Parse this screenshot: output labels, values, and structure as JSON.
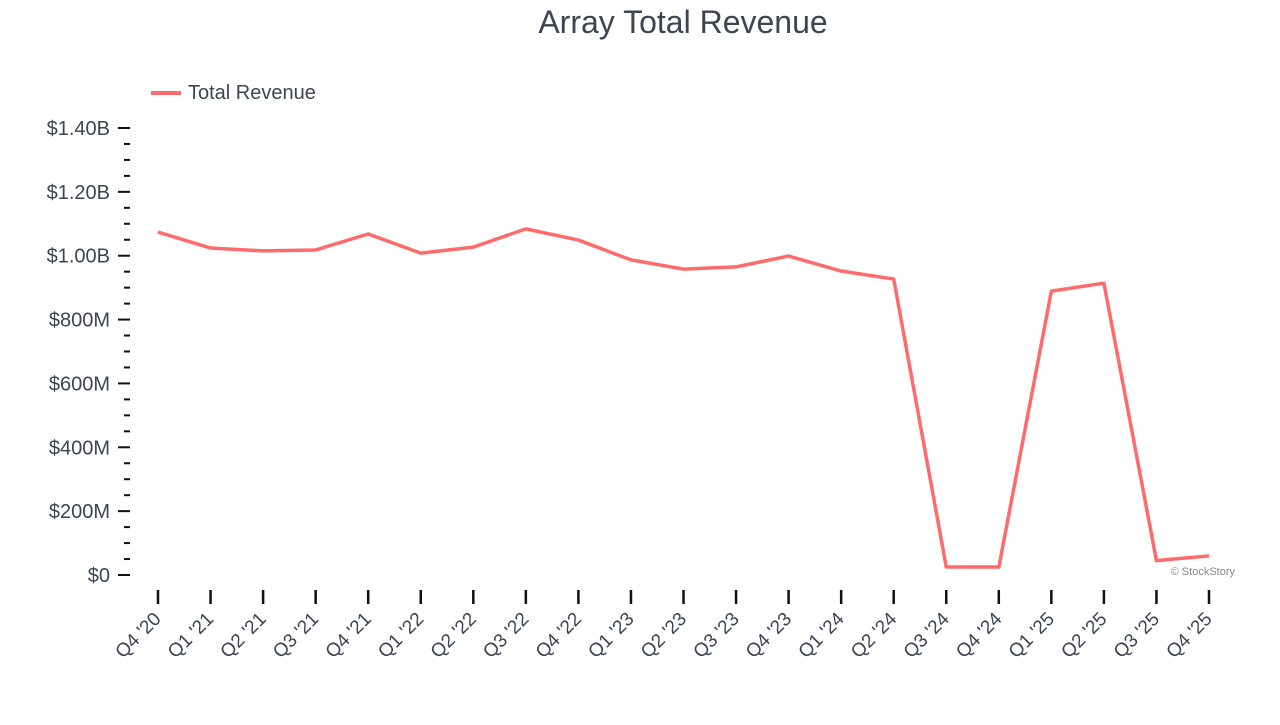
{
  "chart_data": {
    "type": "line",
    "title": "Array Total Revenue",
    "xlabel": "",
    "ylabel": "",
    "categories": [
      "Q4 '20",
      "Q1 '21",
      "Q2 '21",
      "Q3 '21",
      "Q4 '21",
      "Q1 '22",
      "Q2 '22",
      "Q3 '22",
      "Q4 '22",
      "Q1 '23",
      "Q2 '23",
      "Q3 '23",
      "Q4 '23",
      "Q1 '24",
      "Q2 '24",
      "Q3 '24",
      "Q4 '24",
      "Q1 '25",
      "Q2 '25",
      "Q3 '25",
      "Q4 '25"
    ],
    "series": [
      {
        "name": "Total Revenue",
        "color": "#ff6b6b",
        "values": [
          1074,
          1024,
          1015,
          1018,
          1068,
          1008,
          1027,
          1084,
          1049,
          987,
          958,
          965,
          999,
          952,
          927,
          25,
          25,
          889,
          914,
          45,
          60
        ]
      }
    ],
    "unit": "millions USD",
    "ylim": [
      0,
      1400
    ],
    "yticks": [
      0,
      200,
      400,
      600,
      800,
      1000,
      1200,
      1400
    ],
    "ytick_labels": [
      "$0",
      "$200M",
      "$400M",
      "$600M",
      "$800M",
      "$1.00B",
      "$1.20B",
      "$1.40B"
    ],
    "grid": false,
    "legend": "top-left",
    "watermark": "© StockStory"
  }
}
